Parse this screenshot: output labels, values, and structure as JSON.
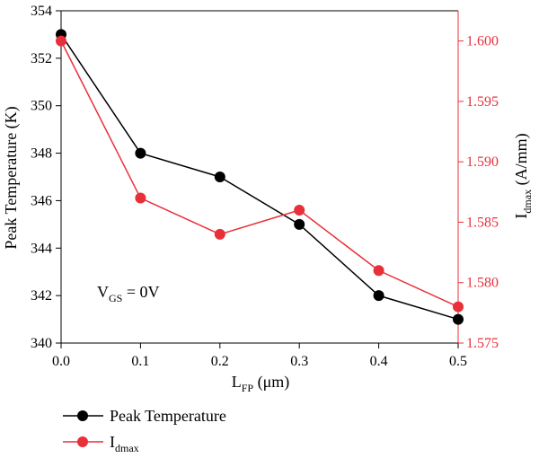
{
  "chart_data": {
    "type": "line",
    "x": [
      0.0,
      0.1,
      0.2,
      0.3,
      0.4,
      0.5
    ],
    "xlim": [
      0.0,
      0.5
    ],
    "xticks": [
      "0.0",
      "0.1",
      "0.2",
      "0.3",
      "0.4",
      "0.5"
    ],
    "xlabel": {
      "main": "L",
      "sub": "FP",
      "rest": " (μm)"
    },
    "y_left": {
      "label": "Peak Temperature (K)",
      "lim": [
        340,
        354
      ],
      "ticks": [
        "340",
        "342",
        "344",
        "346",
        "348",
        "350",
        "352",
        "354"
      ],
      "color": "#000000"
    },
    "y_right": {
      "label": {
        "main": "I",
        "sub": "dmax",
        "rest": " (A/mm)"
      },
      "lim": [
        1.575,
        1.6025
      ],
      "ticks": [
        "1.575",
        "1.580",
        "1.585",
        "1.590",
        "1.595",
        "1.600"
      ],
      "color": "#e8303a"
    },
    "series": [
      {
        "name": "Peak Temperature",
        "axis": "left",
        "color": "#000000",
        "values": [
          353,
          348,
          347,
          345,
          342,
          341
        ]
      },
      {
        "name": {
          "main": "I",
          "sub": "dmax"
        },
        "axis": "right",
        "color": "#e8303a",
        "values": [
          1.6,
          1.587,
          1.584,
          1.586,
          1.581,
          1.578
        ]
      }
    ],
    "annotation": {
      "main": "V",
      "sub": "GS",
      "rest": " = 0V"
    },
    "grid": false,
    "legend_position": "below"
  }
}
